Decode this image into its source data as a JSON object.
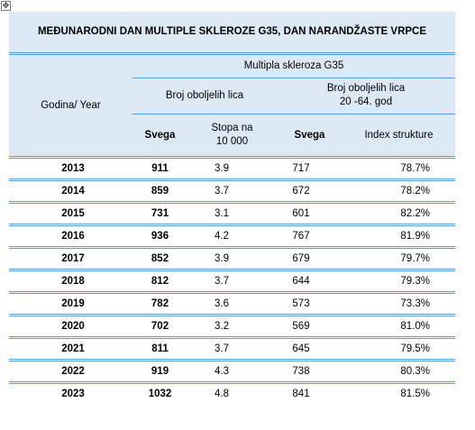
{
  "handle_glyph": "✥",
  "title": "MEĐUNARODNI DAN MULTIPLE SKLEROZE G35, DAN NARANDŽASTE VRPCE",
  "header": {
    "year_col": "Godina/ Year",
    "group": "Multipla skleroza G35",
    "sub_left": "Broj oboljelih lica",
    "sub_right_line1": "Broj oboljelih lica",
    "sub_right_line2": "20 -64. god",
    "col_total": "Svega",
    "col_rate_line1": "Stopa na",
    "col_rate_line2": "10 000",
    "col_total2": "Svega",
    "col_index": "Index strukture"
  },
  "rows": [
    {
      "year": "2013",
      "total": "911",
      "rate": "3.9",
      "total_20_64": "717",
      "index": "78.7%"
    },
    {
      "year": "2014",
      "total": "859",
      "rate": "3.7",
      "total_20_64": "672",
      "index": "78.2%"
    },
    {
      "year": "2015",
      "total": "731",
      "rate": "3.1",
      "total_20_64": "601",
      "index": "82.2%"
    },
    {
      "year": "2016",
      "total": "936",
      "rate": "4.2",
      "total_20_64": "767",
      "index": "81.9%"
    },
    {
      "year": "2017",
      "total": "852",
      "rate": "3.9",
      "total_20_64": "679",
      "index": "79.7%"
    },
    {
      "year": "2018",
      "total": "812",
      "rate": "3.7",
      "total_20_64": "644",
      "index": "79.3%"
    },
    {
      "year": "2019",
      "total": "782",
      "rate": "3.6",
      "total_20_64": "573",
      "index": "73.3%"
    },
    {
      "year": "2020",
      "total": "702",
      "rate": "3.2",
      "total_20_64": "569",
      "index": "81.0%"
    },
    {
      "year": "2021",
      "total": "811",
      "rate": "3.7",
      "total_20_64": "645",
      "index": "79.5%"
    },
    {
      "year": "2022",
      "total": "919",
      "rate": "4.3",
      "total_20_64": "738",
      "index": "80.3%"
    },
    {
      "year": "2023",
      "total": "1032",
      "rate": "4.8",
      "total_20_64": "841",
      "index": "81.5%"
    }
  ],
  "colors": {
    "header_bg": "#dce9f5",
    "border": "#5b9bd5"
  }
}
